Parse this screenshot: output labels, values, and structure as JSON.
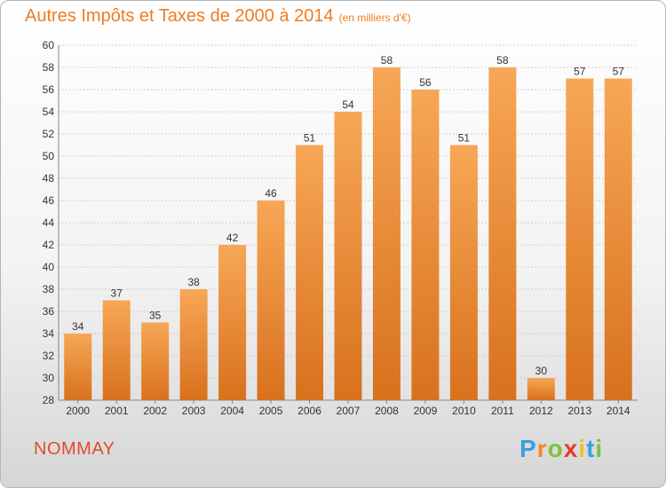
{
  "header": {
    "title": "Autres Impôts et Taxes de 2000 à 2014",
    "subtitle": "(en milliers d'€)"
  },
  "footer": {
    "commune": "NOMMAY",
    "logo_letters": [
      "P",
      "r",
      "o",
      "x",
      "i",
      "t",
      "i"
    ],
    "logo_colors": [
      "#3aa0dc",
      "#f08a1e",
      "#7cc242",
      "#e63b2e",
      "#f2c21c",
      "#3aa0dc",
      "#7cc242"
    ]
  },
  "colors": {
    "bar_light": "#f7a756",
    "bar_dark": "#d8711e",
    "axis": "#888888",
    "grid": "#cfcfcf",
    "title": "#f07c20",
    "commune": "#e24a2e"
  },
  "chart_data": {
    "type": "bar",
    "title": "Autres Impôts et Taxes de 2000 à 2014",
    "subtitle": "(en milliers d'€)",
    "xlabel": "",
    "ylabel": "",
    "categories": [
      "2000",
      "2001",
      "2002",
      "2003",
      "2004",
      "2005",
      "2006",
      "2007",
      "2008",
      "2009",
      "2010",
      "2011",
      "2012",
      "2013",
      "2014"
    ],
    "values": [
      34,
      37,
      35,
      38,
      42,
      46,
      51,
      54,
      58,
      56,
      51,
      58,
      30,
      57,
      57
    ],
    "ylim": [
      28,
      60
    ],
    "yticks": [
      28,
      30,
      32,
      34,
      36,
      38,
      40,
      42,
      44,
      46,
      48,
      50,
      52,
      54,
      56,
      58,
      60
    ],
    "grid": true,
    "legend": "none"
  }
}
